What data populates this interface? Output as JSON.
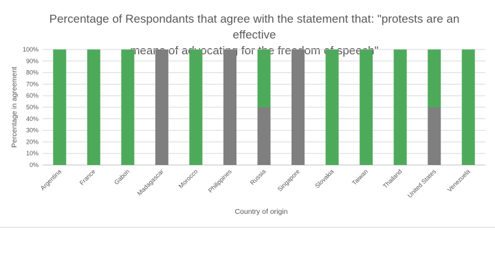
{
  "chart_data": {
    "type": "bar",
    "stacked": true,
    "title_lines": [
      "Percentage of Respondants that agree with the statement that: \"protests are an effective",
      "means of advocating for the freedom of speech\""
    ],
    "xlabel": "Country of origin",
    "ylabel": "Percentage in agreement",
    "categories": [
      "Argentina",
      "France",
      "Gabon",
      "Madagascar",
      "Morocco",
      "Philippines",
      "Russia",
      "Singapore",
      "Slovakia",
      "Taiwan",
      "Thailand",
      "United States",
      "Venezuela"
    ],
    "y_ticks": [
      "0%",
      "10%",
      "20%",
      "30%",
      "40%",
      "50%",
      "60%",
      "70%",
      "80%",
      "90%",
      "100%"
    ],
    "ylim": [
      0,
      100
    ],
    "grid": true,
    "legend": "none",
    "series": [
      {
        "color": "#7f7f7f",
        "values": [
          0,
          0,
          0,
          100,
          0,
          100,
          50,
          100,
          0,
          0,
          0,
          50,
          0
        ]
      },
      {
        "color": "#4eaa5b",
        "values": [
          100,
          100,
          100,
          0,
          100,
          0,
          50,
          0,
          100,
          100,
          100,
          50,
          100
        ]
      }
    ]
  }
}
